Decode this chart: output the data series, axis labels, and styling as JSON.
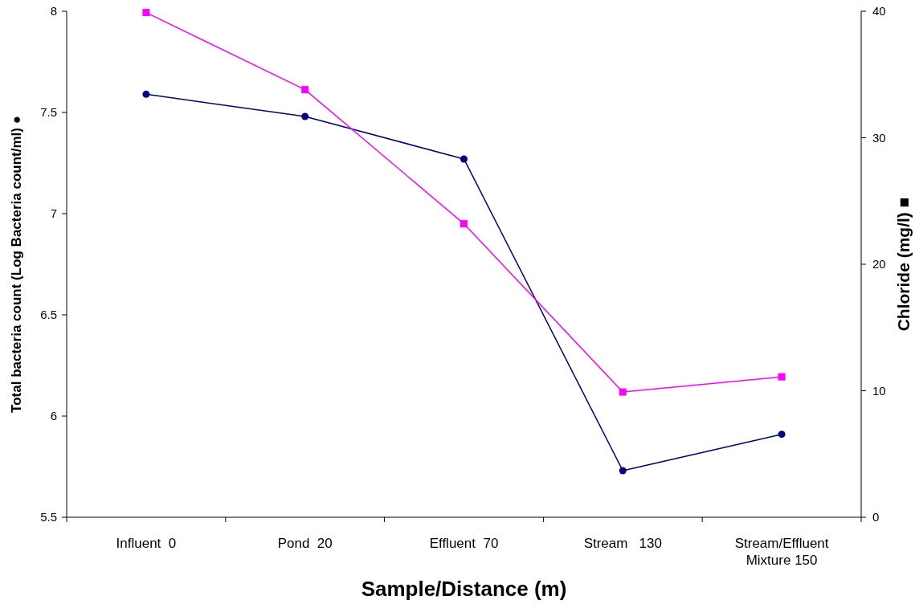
{
  "chart_data": {
    "type": "line",
    "categories": [
      "Influent  0",
      "Pond  20",
      "Effluent  70",
      "Stream   130",
      "Stream/Effluent Mixture 150"
    ],
    "xlabel": "Sample/Distance (m)",
    "ylabel": "Total bacteria count (Log Bacteria count/ml) ●",
    "y2label": "Chloride (mg/l) ■",
    "series": [
      {
        "color": "#000080",
        "marker": "circle",
        "values": [
          7.59,
          7.48,
          7.27,
          5.73,
          5.91
        ]
      },
      {
        "color": "#ff00ff",
        "marker": "square",
        "axis": "y2",
        "values": [
          39.9,
          33.8,
          23.2,
          9.9,
          11.1
        ]
      }
    ],
    "ylim": [
      5.5,
      8
    ],
    "yticks": [
      5.5,
      6,
      6.5,
      7,
      7.5,
      8
    ],
    "y2lim": [
      0,
      40
    ],
    "y2ticks": [
      0,
      10,
      20,
      30,
      40
    ],
    "grid": false
  }
}
